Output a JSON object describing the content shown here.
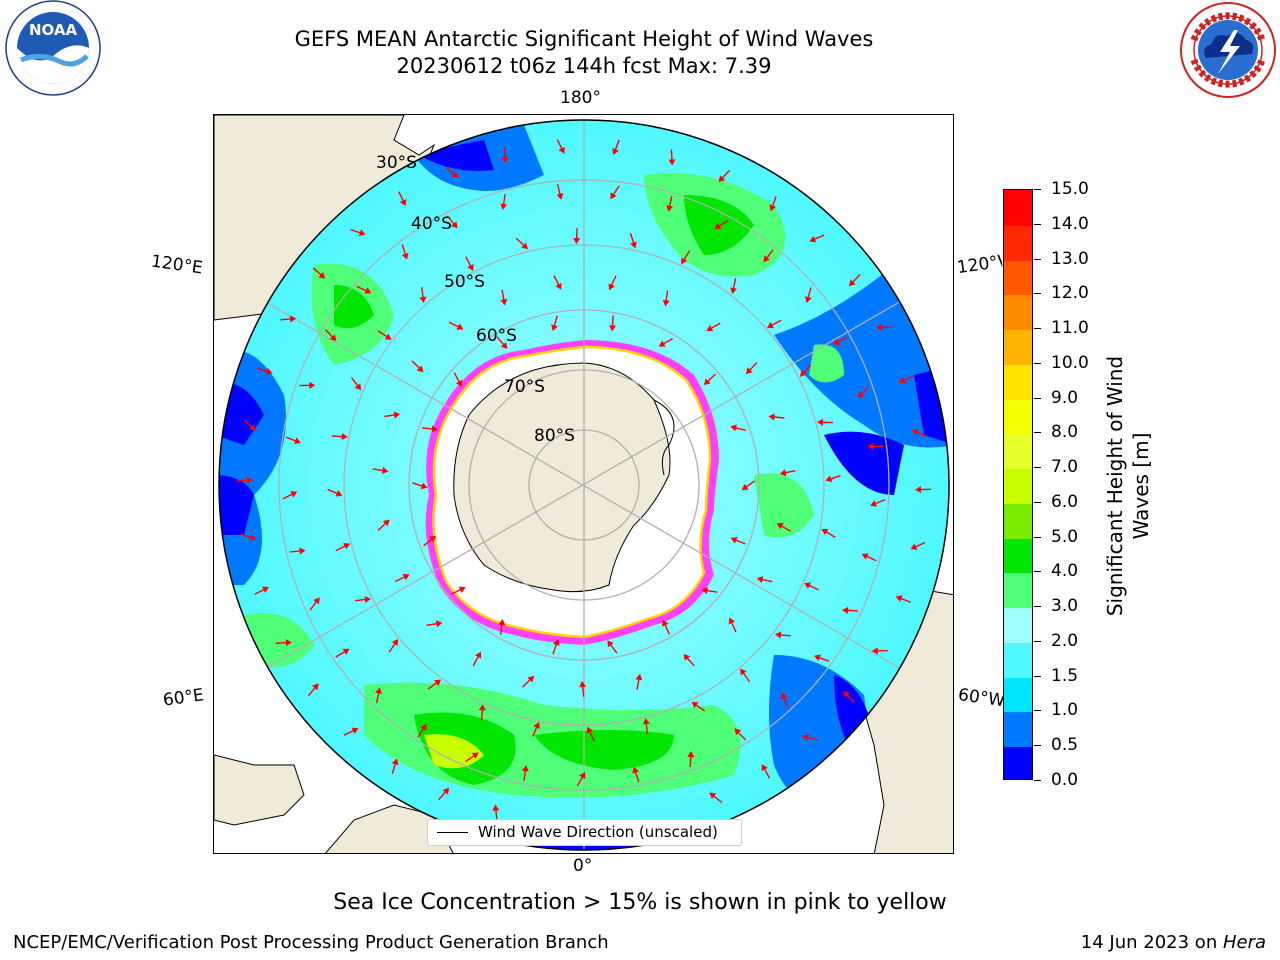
{
  "header": {
    "title_line1": "GEFS MEAN Antarctic Significant Height of Wind Waves",
    "title_line2": "20230612 t06z 144h fcst   Max: 7.39"
  },
  "logos": {
    "noaa_text": "NOAA",
    "noaa_ring_text": "NATIONAL OCEANIC AND ATMOSPHERIC ADMINISTRATION · U.S. DEPARTMENT OF COMMERCE",
    "nws_ring_text": "NATIONAL WEATHER SERVICE"
  },
  "map": {
    "projection": "south-polar-stereographic",
    "longitude_labels": {
      "top": "180°",
      "bottom": "0°",
      "upper_left": "120°E",
      "upper_right": "120°W",
      "lower_left": "60°E",
      "lower_right": "60°W"
    },
    "latitude_labels": [
      "30°S",
      "40°S",
      "50°S",
      "60°S",
      "70°S",
      "80°S"
    ],
    "legend_label": "Wind Wave Direction (unscaled)",
    "colors": {
      "land": "#efebd8",
      "sea_ice_low": "#ff40ff",
      "sea_ice_high": "#ffd400",
      "arrow": "#ff0000",
      "grid": "#b0b0b0"
    }
  },
  "colorbar": {
    "label": "Significant Height of Wind Waves [m]",
    "label_line1": "Significant Height of Wind",
    "label_line2": "Waves [m]",
    "ticks": [
      "0.0",
      "0.5",
      "1.0",
      "1.5",
      "2.0",
      "3.0",
      "4.0",
      "5.0",
      "6.0",
      "7.0",
      "8.0",
      "9.0",
      "10.0",
      "11.0",
      "12.0",
      "13.0",
      "14.0",
      "15.0"
    ],
    "bins": [
      {
        "from": "0.0",
        "to": "0.5",
        "color": "#0000ff"
      },
      {
        "from": "0.5",
        "to": "1.0",
        "color": "#0078ff"
      },
      {
        "from": "1.0",
        "to": "1.5",
        "color": "#00e6ff"
      },
      {
        "from": "1.5",
        "to": "2.0",
        "color": "#50f8ff"
      },
      {
        "from": "2.0",
        "to": "3.0",
        "color": "#a0ffff"
      },
      {
        "from": "3.0",
        "to": "4.0",
        "color": "#50ff78"
      },
      {
        "from": "4.0",
        "to": "5.0",
        "color": "#00e600"
      },
      {
        "from": "5.0",
        "to": "6.0",
        "color": "#78ec00"
      },
      {
        "from": "6.0",
        "to": "7.0",
        "color": "#c8ff00"
      },
      {
        "from": "7.0",
        "to": "8.0",
        "color": "#e6ff28"
      },
      {
        "from": "8.0",
        "to": "9.0",
        "color": "#f5ff00"
      },
      {
        "from": "9.0",
        "to": "10.0",
        "color": "#ffe600"
      },
      {
        "from": "10.0",
        "to": "11.0",
        "color": "#ffb400"
      },
      {
        "from": "11.0",
        "to": "12.0",
        "color": "#ff8c00"
      },
      {
        "from": "12.0",
        "to": "13.0",
        "color": "#ff5a00"
      },
      {
        "from": "13.0",
        "to": "14.0",
        "color": "#ff2800"
      },
      {
        "from": "14.0",
        "to": "15.0",
        "color": "#ff0000"
      }
    ]
  },
  "footer": {
    "subtitle": "Sea Ice Concentration > 15% is shown in pink to yellow",
    "left": "NCEP/EMC/Verification Post Processing Product Generation Branch",
    "date": "14 Jun 2023 on ",
    "host": "Hera"
  }
}
